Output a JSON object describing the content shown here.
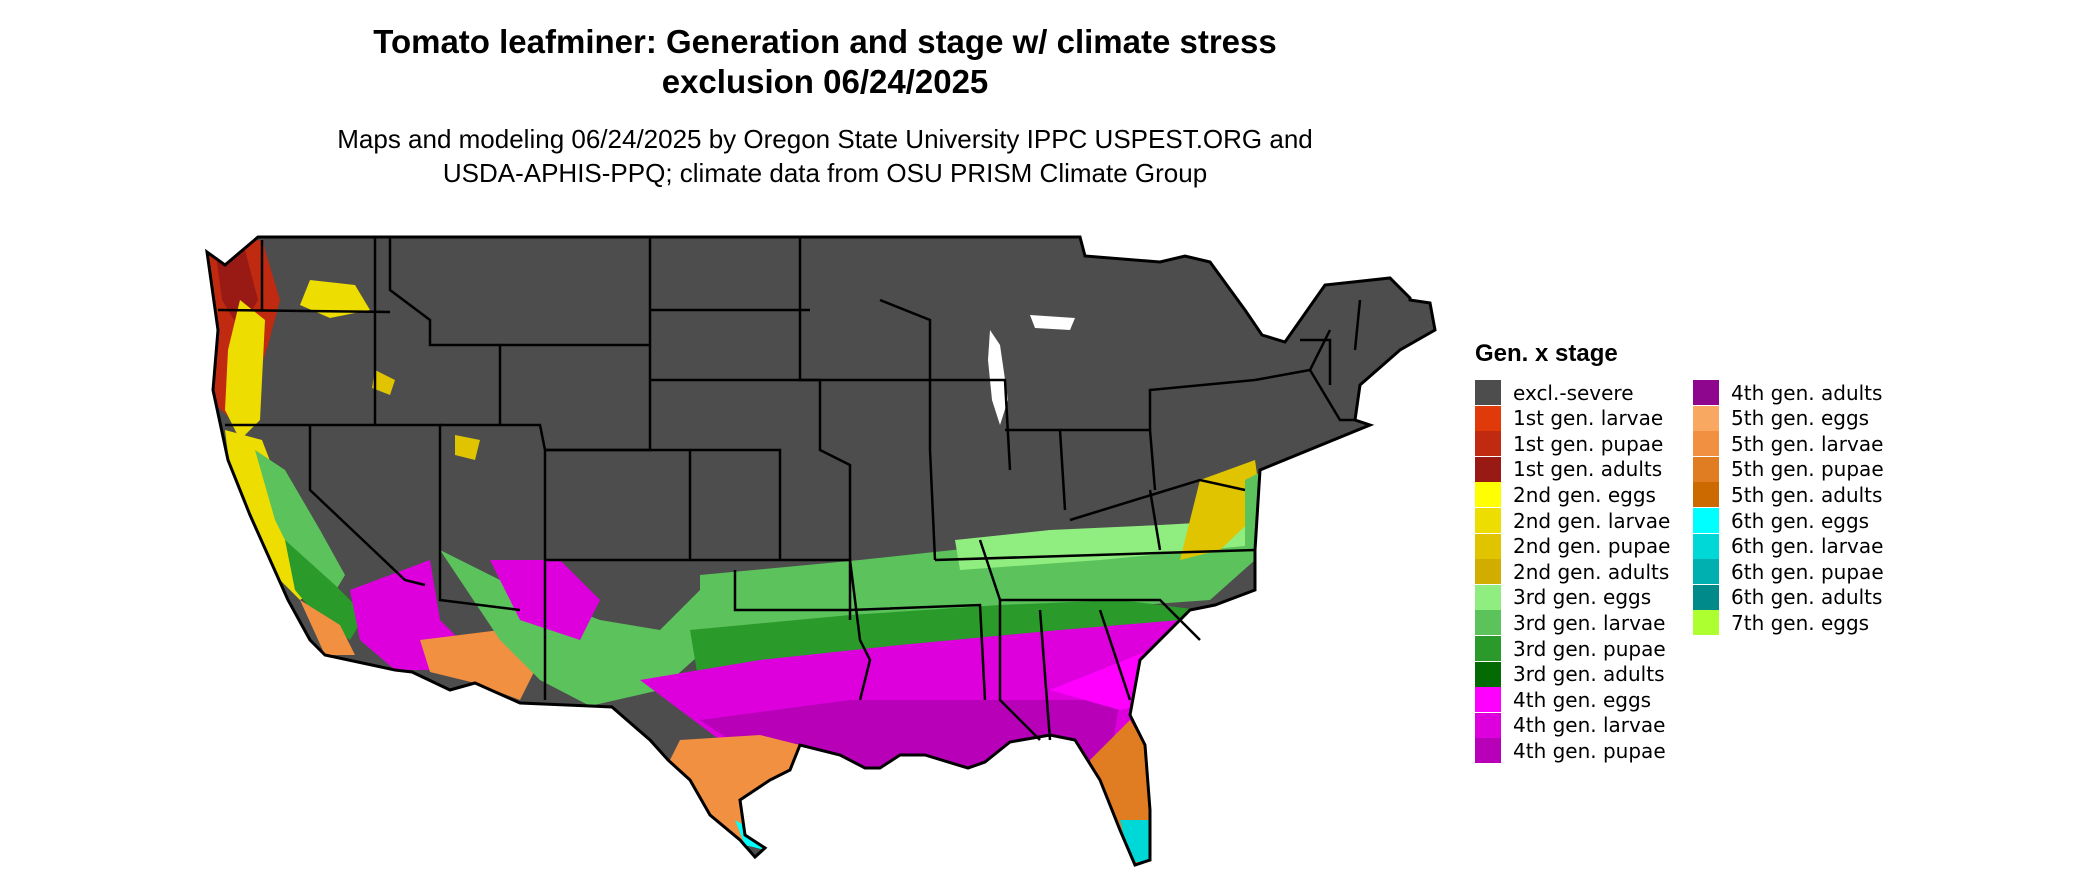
{
  "title_line1": "Tomato leafminer: Generation and stage w/ climate stress",
  "title_line2": "exclusion 06/24/2025",
  "subtitle_line1": "Maps and modeling 06/24/2025 by Oregon State University IPPC USPEST.ORG and",
  "subtitle_line2": "USDA-APHIS-PPQ; climate data from OSU PRISM Climate Group",
  "legend": {
    "title": "Gen. x stage",
    "items": [
      {
        "label": "excl.-severe",
        "color": "#4d4d4d"
      },
      {
        "label": "1st gen. larvae",
        "color": "#e03a0b"
      },
      {
        "label": "1st gen. pupae",
        "color": "#c02a10"
      },
      {
        "label": "1st gen. adults",
        "color": "#991a14"
      },
      {
        "label": "2nd gen. eggs",
        "color": "#ffff00"
      },
      {
        "label": "2nd gen. larvae",
        "color": "#eedd00"
      },
      {
        "label": "2nd gen. pupae",
        "color": "#e0c400"
      },
      {
        "label": "2nd gen. adults",
        "color": "#d1ad00"
      },
      {
        "label": "3rd gen. eggs",
        "color": "#90ee80"
      },
      {
        "label": "3rd gen. larvae",
        "color": "#5cc25c"
      },
      {
        "label": "3rd gen. pupae",
        "color": "#2a9a2a"
      },
      {
        "label": "3rd gen. adults",
        "color": "#046b04"
      },
      {
        "label": "4th gen. eggs",
        "color": "#ff00ff"
      },
      {
        "label": "4th gen. larvae",
        "color": "#dd00dd"
      },
      {
        "label": "4th gen. pupae",
        "color": "#b800b8"
      },
      {
        "label": "4th gen. adults",
        "color": "#8e068e"
      },
      {
        "label": "5th gen. eggs",
        "color": "#f8a860"
      },
      {
        "label": "5th gen. larvae",
        "color": "#f09040"
      },
      {
        "label": "5th gen. pupae",
        "color": "#e07c22"
      },
      {
        "label": "5th gen. adults",
        "color": "#cc6a00"
      },
      {
        "label": "6th gen. eggs",
        "color": "#00ffff"
      },
      {
        "label": "6th gen. larvae",
        "color": "#00d8d8"
      },
      {
        "label": "6th gen. pupae",
        "color": "#00b0b0"
      },
      {
        "label": "6th gen. adults",
        "color": "#008a8a"
      },
      {
        "label": "7th gen. eggs",
        "color": "#adff2f"
      }
    ]
  }
}
